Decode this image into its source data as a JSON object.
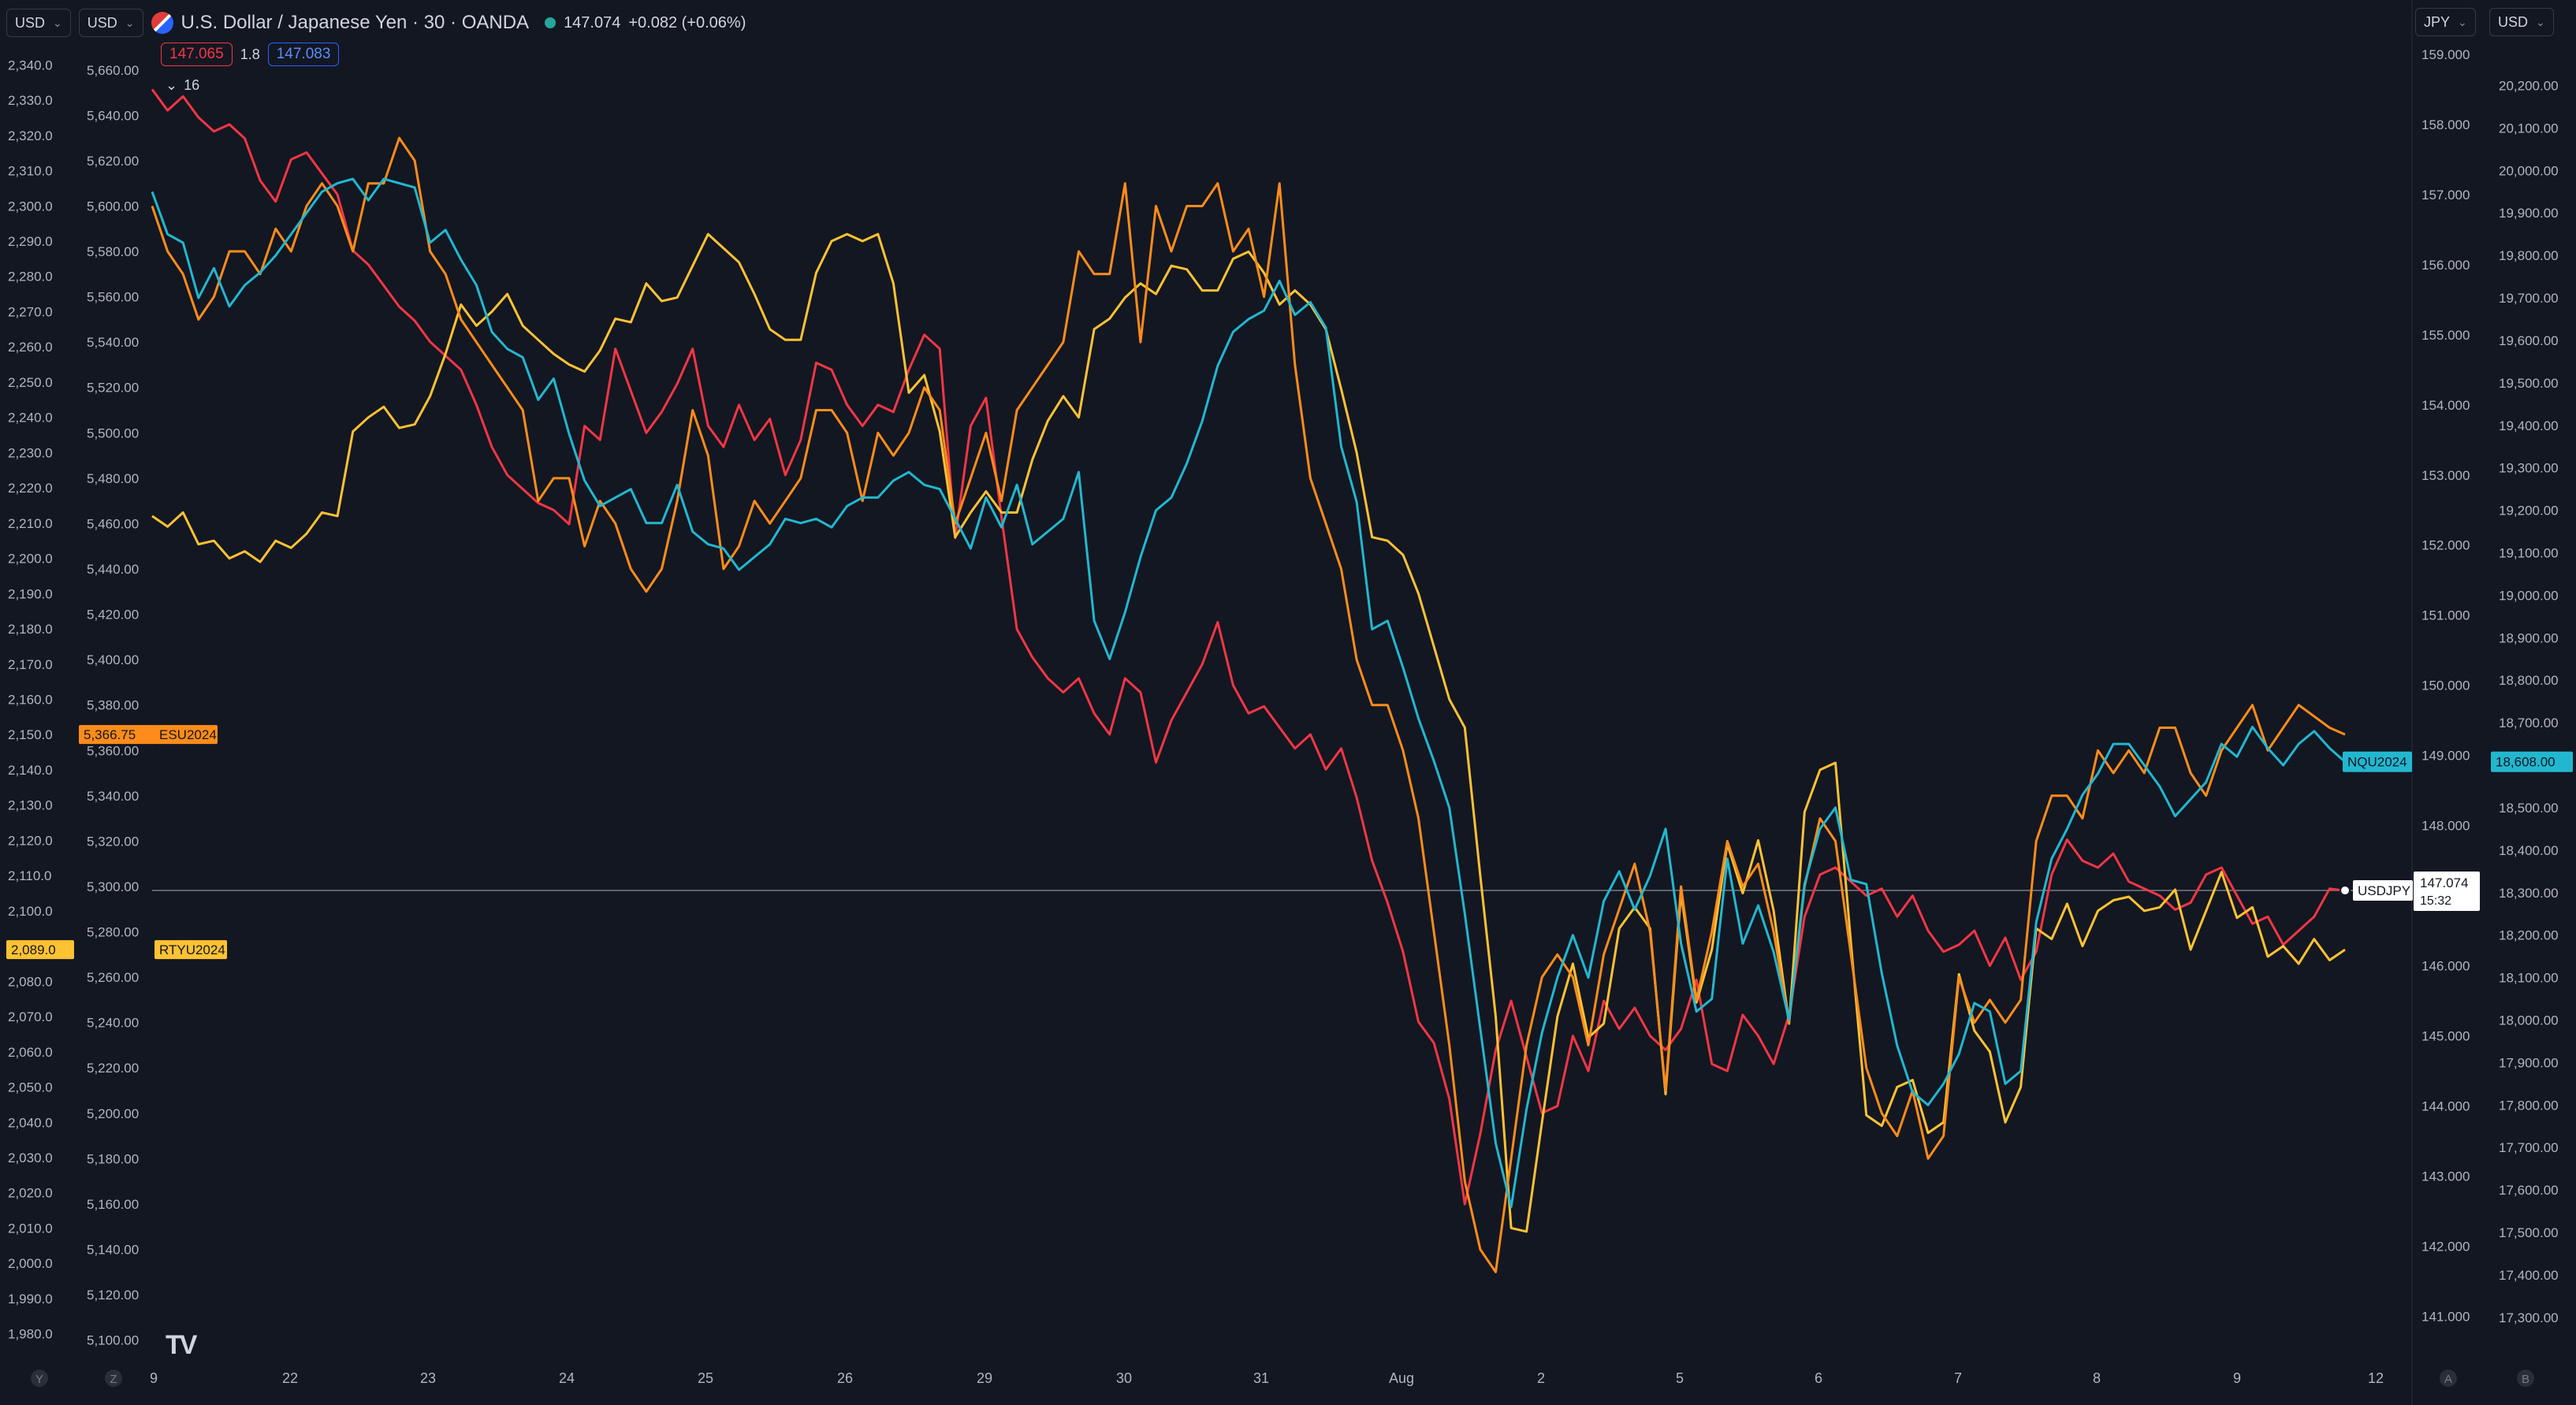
{
  "header": {
    "currency_left1": "USD",
    "currency_left2": "USD",
    "title": "U.S. Dollar / Japanese Yen · 30 · OANDA",
    "last": "147.074",
    "change": "+0.082 (+0.06%)",
    "bid": "147.065",
    "spread": "1.8",
    "ask": "147.083",
    "indicators_count": "16",
    "currency_right1": "JPY",
    "currency_right2": "USD"
  },
  "colors": {
    "background": "#131722",
    "usdjpy": "#f23645",
    "nq": "#22b7cf",
    "es": "#ff8c1a",
    "rty": "#ffc233",
    "text": "#d1d4dc"
  },
  "chart_data": {
    "type": "line",
    "time_labels": [
      "9",
      "22",
      "23",
      "24",
      "25",
      "26",
      "29",
      "30",
      "31",
      "Aug",
      "2",
      "5",
      "6",
      "7",
      "8",
      "9",
      "12"
    ],
    "bottom_left_markers": [
      "Y",
      "Z"
    ],
    "bottom_right_markers": [
      "A",
      "B"
    ],
    "axes": {
      "rty_left": {
        "min": 1975,
        "max": 2345,
        "ticks_from": 1980,
        "ticks_to": 2340,
        "step": 10
      },
      "es_left": {
        "min": 5095,
        "max": 5670,
        "ticks_from": 5100,
        "ticks_to": 5660,
        "step": 20
      },
      "usdjpy_right": {
        "min": 140.5,
        "max": 159.1,
        "ticks_from": 141,
        "ticks_to": 159,
        "step": 1
      },
      "nq_right": {
        "min": 17220,
        "max": 20290,
        "ticks_from": 17300,
        "ticks_to": 20200,
        "step": 100
      }
    },
    "series": [
      {
        "name": "USDJPY",
        "axis": "usdjpy_right",
        "color": "#f23645",
        "last_label": "147.074",
        "time_label": "15:32",
        "values": [
          158.5,
          158.2,
          158.4,
          158.1,
          157.9,
          158.0,
          157.8,
          157.2,
          156.9,
          157.5,
          157.6,
          157.3,
          157.0,
          156.2,
          156.0,
          155.7,
          155.4,
          155.2,
          154.9,
          154.7,
          154.5,
          154.0,
          153.4,
          153.0,
          152.8,
          152.6,
          152.5,
          152.3,
          153.7,
          153.5,
          154.8,
          154.2,
          153.6,
          153.9,
          154.3,
          154.8,
          153.7,
          153.4,
          154.0,
          153.5,
          153.8,
          153.0,
          153.5,
          154.6,
          154.5,
          154.0,
          153.7,
          154.0,
          153.9,
          154.5,
          155.0,
          154.8,
          152.1,
          153.7,
          154.1,
          152.4,
          150.8,
          150.4,
          150.1,
          149.9,
          150.1,
          149.6,
          149.3,
          150.1,
          149.9,
          148.9,
          149.5,
          149.9,
          150.3,
          150.9,
          150.0,
          149.6,
          149.7,
          149.4,
          149.1,
          149.3,
          148.8,
          149.1,
          148.4,
          147.5,
          146.9,
          146.2,
          145.2,
          144.9,
          144.1,
          142.6,
          143.6,
          144.8,
          145.5,
          144.7,
          143.9,
          144.0,
          145.0,
          144.5,
          145.5,
          145.1,
          145.4,
          145.0,
          144.8,
          145.1,
          145.8,
          144.6,
          144.5,
          145.3,
          145.0,
          144.6,
          145.3,
          146.7,
          147.3,
          147.4,
          147.2,
          147.0,
          147.1,
          146.7,
          147.0,
          146.5,
          146.2,
          146.3,
          146.5,
          146.0,
          146.4,
          145.8,
          146.2,
          147.3,
          147.8,
          147.5,
          147.4,
          147.6,
          147.2,
          147.1,
          147.0,
          146.8,
          146.9,
          147.3,
          147.4,
          147.0,
          146.6,
          146.7,
          146.3,
          146.5,
          146.7,
          147.1,
          147.07
        ]
      },
      {
        "name": "NQU2024",
        "axis": "nq_right",
        "color": "#22b7cf",
        "last_label": "18,608.00",
        "values": [
          19950,
          19850,
          19830,
          19700,
          19770,
          19680,
          19730,
          19760,
          19800,
          19850,
          19900,
          19950,
          19970,
          19980,
          19930,
          19980,
          19970,
          19960,
          19830,
          19860,
          19790,
          19730,
          19620,
          19580,
          19560,
          19460,
          19510,
          19380,
          19270,
          19210,
          19230,
          19250,
          19170,
          19170,
          19260,
          19150,
          19120,
          19110,
          19060,
          19090,
          19120,
          19180,
          19170,
          19180,
          19160,
          19210,
          19230,
          19230,
          19270,
          19290,
          19260,
          19250,
          19180,
          19110,
          19230,
          19160,
          19260,
          19120,
          19150,
          19180,
          19290,
          18940,
          18850,
          18960,
          19090,
          19200,
          19230,
          19310,
          19410,
          19540,
          19620,
          19650,
          19670,
          19740,
          19660,
          19690,
          19630,
          19350,
          19220,
          18920,
          18940,
          18830,
          18710,
          18610,
          18500,
          18250,
          17980,
          17710,
          17560,
          17790,
          17970,
          18100,
          18200,
          18100,
          18280,
          18350,
          18260,
          18340,
          18450,
          18180,
          18020,
          18050,
          18380,
          18180,
          18270,
          18160,
          18000,
          18320,
          18450,
          18500,
          18330,
          18320,
          18110,
          17940,
          17830,
          17800,
          17850,
          17920,
          18040,
          18020,
          17850,
          17880,
          18230,
          18380,
          18450,
          18530,
          18580,
          18650,
          18650,
          18600,
          18550,
          18480,
          18520,
          18560,
          18650,
          18620,
          18690,
          18640,
          18600,
          18650,
          18680,
          18640,
          18608
        ]
      },
      {
        "name": "ESU2024",
        "axis": "es_left",
        "color": "#ff8c1a",
        "last_label": "5,366.75",
        "values": [
          5600,
          5580,
          5570,
          5550,
          5560,
          5580,
          5580,
          5570,
          5590,
          5580,
          5600,
          5610,
          5600,
          5580,
          5610,
          5610,
          5630,
          5620,
          5580,
          5570,
          5550,
          5540,
          5530,
          5520,
          5510,
          5470,
          5480,
          5480,
          5450,
          5470,
          5460,
          5440,
          5430,
          5440,
          5470,
          5510,
          5490,
          5440,
          5450,
          5470,
          5460,
          5470,
          5480,
          5510,
          5510,
          5500,
          5470,
          5500,
          5490,
          5500,
          5520,
          5510,
          5460,
          5480,
          5500,
          5470,
          5510,
          5520,
          5530,
          5540,
          5580,
          5570,
          5570,
          5610,
          5540,
          5600,
          5580,
          5600,
          5600,
          5610,
          5580,
          5590,
          5560,
          5610,
          5530,
          5480,
          5460,
          5440,
          5400,
          5380,
          5380,
          5360,
          5330,
          5280,
          5230,
          5170,
          5140,
          5130,
          5180,
          5230,
          5260,
          5270,
          5260,
          5230,
          5270,
          5290,
          5310,
          5280,
          5210,
          5300,
          5250,
          5280,
          5320,
          5300,
          5310,
          5280,
          5240,
          5300,
          5330,
          5320,
          5270,
          5220,
          5200,
          5190,
          5210,
          5180,
          5190,
          5260,
          5240,
          5250,
          5240,
          5250,
          5320,
          5340,
          5340,
          5330,
          5360,
          5350,
          5360,
          5350,
          5370,
          5370,
          5350,
          5340,
          5360,
          5370,
          5380,
          5360,
          5370,
          5380,
          5375,
          5370,
          5367
        ]
      },
      {
        "name": "RTYU2024",
        "axis": "rty_left",
        "color": "#ffc233",
        "last_label": "2,089.0",
        "values": [
          2212,
          2209,
          2213,
          2204,
          2205,
          2200,
          2202,
          2199,
          2205,
          2203,
          2207,
          2213,
          2212,
          2236,
          2240,
          2243,
          2237,
          2238,
          2246,
          2258,
          2272,
          2266,
          2270,
          2275,
          2266,
          2262,
          2258,
          2255,
          2253,
          2259,
          2268,
          2267,
          2278,
          2273,
          2274,
          2283,
          2292,
          2288,
          2284,
          2275,
          2265,
          2262,
          2262,
          2281,
          2290,
          2292,
          2290,
          2292,
          2278,
          2247,
          2252,
          2236,
          2206,
          2213,
          2219,
          2213,
          2213,
          2228,
          2239,
          2246,
          2240,
          2265,
          2268,
          2274,
          2278,
          2275,
          2283,
          2282,
          2276,
          2276,
          2285,
          2287,
          2281,
          2272,
          2276,
          2272,
          2265,
          2248,
          2230,
          2206,
          2205,
          2201,
          2190,
          2175,
          2160,
          2152,
          2110,
          2070,
          2010,
          2009,
          2040,
          2070,
          2085,
          2064,
          2068,
          2095,
          2101,
          2095,
          2048,
          2105,
          2074,
          2089,
          2119,
          2105,
          2120,
          2100,
          2068,
          2128,
          2140,
          2142,
          2091,
          2042,
          2039,
          2050,
          2052,
          2037,
          2040,
          2082,
          2066,
          2060,
          2040,
          2050,
          2095,
          2092,
          2102,
          2090,
          2100,
          2103,
          2104,
          2100,
          2101,
          2106,
          2089,
          2100,
          2111,
          2098,
          2101,
          2087,
          2090,
          2085,
          2092,
          2086,
          2089
        ]
      }
    ],
    "crosshair_value": "147.074"
  }
}
